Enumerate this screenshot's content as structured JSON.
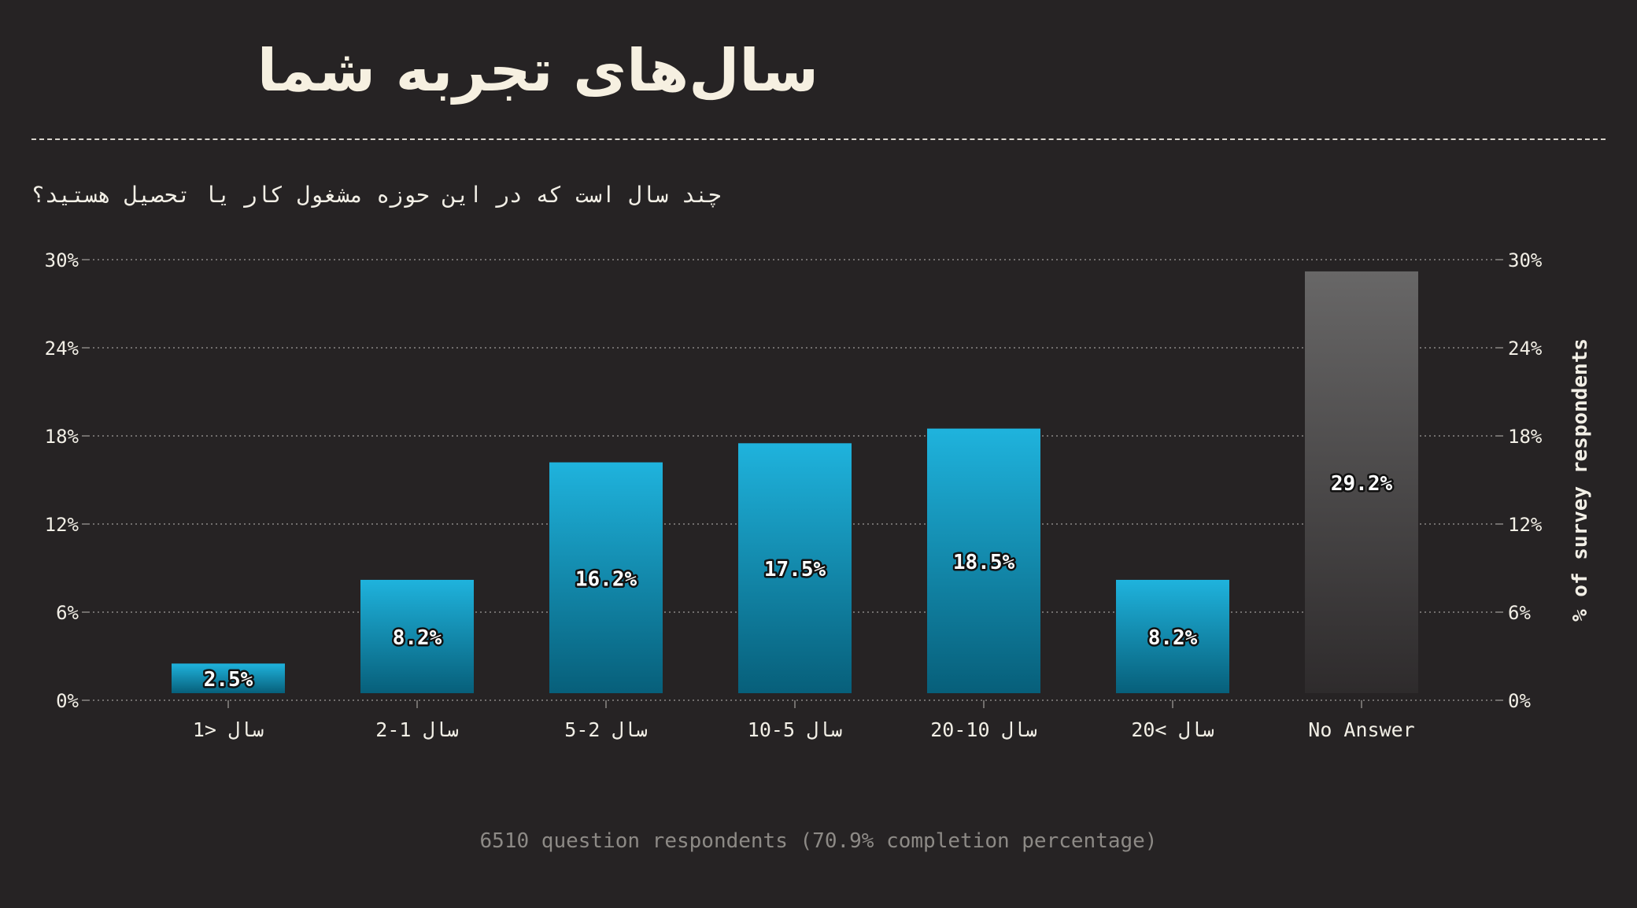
{
  "header": {
    "title": "سال‌های تجربه شما",
    "subtitle": "چند سال است که در این حوزه مشغول کار یا تحصیل هستید؟"
  },
  "chart_data": {
    "type": "bar",
    "categories": [
      "سال <1",
      "سال 1-2",
      "سال 2-5",
      "سال 5-10",
      "سال 10-20",
      "سال >20",
      "No Answer"
    ],
    "values": [
      2.5,
      8.2,
      16.2,
      17.5,
      18.5,
      8.2,
      29.2
    ],
    "value_labels": [
      "2.5%",
      "8.2%",
      "16.2%",
      "17.5%",
      "18.5%",
      "8.2%",
      "29.2%"
    ],
    "ylim": [
      0,
      30
    ],
    "yticks": [
      0,
      6,
      12,
      18,
      24,
      30
    ],
    "ytick_labels": [
      "0%",
      "6%",
      "12%",
      "18%",
      "24%",
      "30%"
    ],
    "ylabel": "% of survey respondents",
    "xlabel": "",
    "grid": true,
    "colors": {
      "bar_top": "#1fb3dd",
      "bar_bottom": "#075f7a",
      "na_top": "#686767",
      "na_bottom": "#2e2b2c",
      "grid": "#8a8785",
      "text": "#f2efe6"
    }
  },
  "footer": {
    "note": "6510 question respondents (70.9% completion percentage)"
  }
}
